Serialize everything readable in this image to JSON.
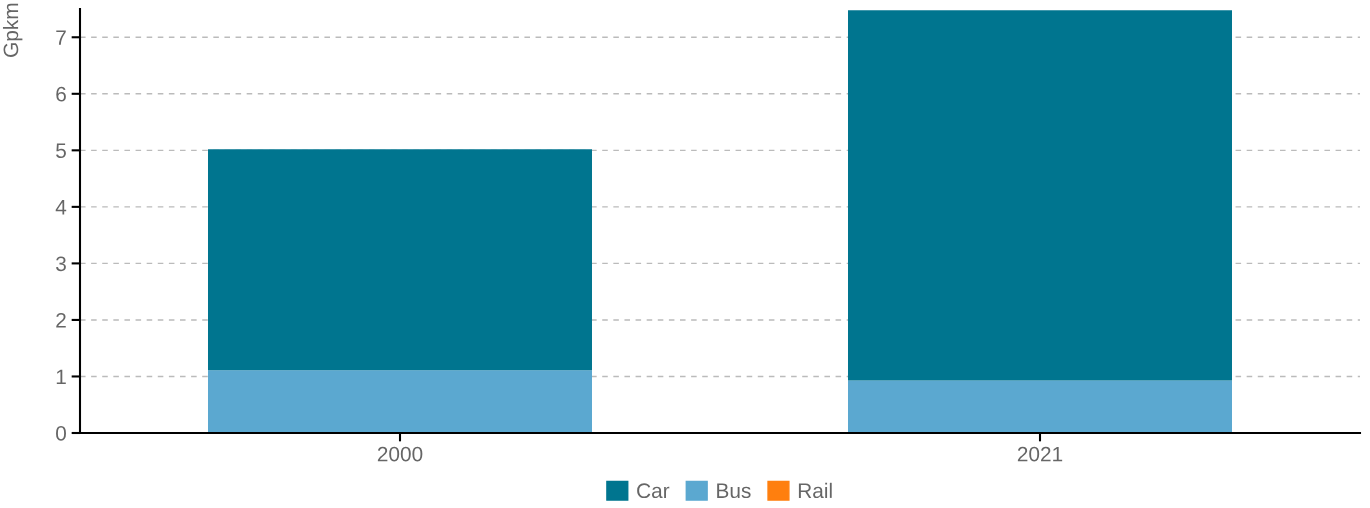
{
  "chart_data": {
    "type": "bar",
    "ylabel": "Gpkm",
    "categories": [
      "2000",
      "2021"
    ],
    "stacked": true,
    "series": [
      {
        "name": "Bus",
        "color": "#5ba8d0",
        "values": [
          1.11,
          0.93
        ]
      },
      {
        "name": "Rail",
        "color": "#ff7f0e",
        "values": [
          0,
          0
        ]
      },
      {
        "name": "Car",
        "color": "#00758f",
        "values": [
          3.91,
          6.55
        ]
      }
    ],
    "ylim": [
      0,
      7.5
    ],
    "yticks": [
      0,
      1,
      2,
      3,
      4,
      5,
      6,
      7
    ],
    "grid": "y",
    "legend": "bottom"
  }
}
